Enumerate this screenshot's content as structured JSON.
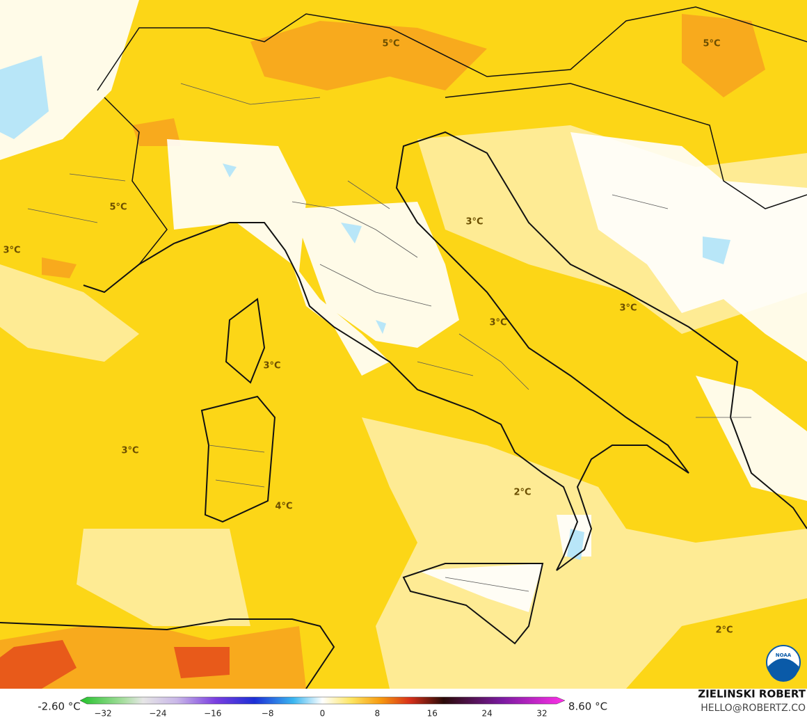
{
  "contour_labels": [
    "5°C",
    "5°C",
    "5°C",
    "3°C",
    "3°C",
    "3°C",
    "3°C",
    "3°C",
    "3°C",
    "4°C",
    "2°C",
    "2°C"
  ],
  "colorbar": {
    "min_label": "-2.60 °C",
    "max_label": "8.60 °C",
    "ticks": [
      "−32",
      "−24",
      "−16",
      "−8",
      "0",
      "8",
      "16",
      "24",
      "32"
    ]
  },
  "credits": {
    "name": "ZIELINSKI ROBERT",
    "email": "HELLO@ROBERTZ.CO"
  },
  "logo": "NOAA"
}
